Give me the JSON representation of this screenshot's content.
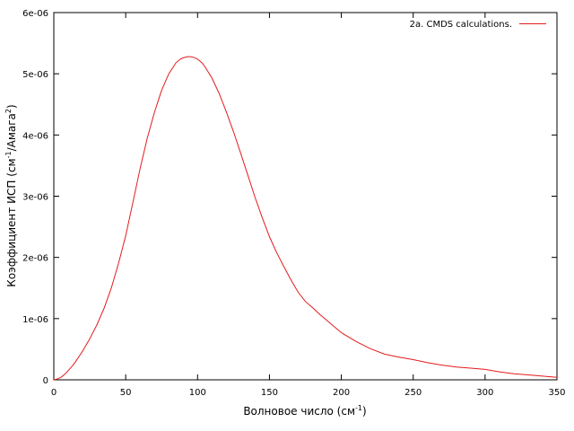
{
  "chart_data": {
    "type": "line",
    "title": "",
    "xlabel": {
      "text": "Волновое число (см",
      "sup": "-1",
      "tail": ")"
    },
    "ylabel": {
      "pre": "Коэффициент ИСП (см",
      "sup1": "-1",
      "mid": "/Амага",
      "sup2": "2",
      "tail": ")"
    },
    "xlim": [
      0,
      350
    ],
    "ylim": [
      0,
      6e-06
    ],
    "xticks": [
      {
        "value": 0,
        "label": "0"
      },
      {
        "value": 50,
        "label": "50"
      },
      {
        "value": 100,
        "label": "100"
      },
      {
        "value": 150,
        "label": "150"
      },
      {
        "value": 200,
        "label": "200"
      },
      {
        "value": 250,
        "label": "250"
      },
      {
        "value": 300,
        "label": "300"
      },
      {
        "value": 350,
        "label": "350"
      }
    ],
    "yticks": [
      {
        "value": 0,
        "label": "0"
      },
      {
        "value": 1e-06,
        "label": "1e-06"
      },
      {
        "value": 2e-06,
        "label": "2e-06"
      },
      {
        "value": 3e-06,
        "label": "3e-06"
      },
      {
        "value": 4e-06,
        "label": "4e-06"
      },
      {
        "value": 5e-06,
        "label": "5e-06"
      },
      {
        "value": 6e-06,
        "label": "6e-06"
      }
    ],
    "grid": false,
    "legend_position": "top-right",
    "series": [
      {
        "name": "2a. CMDS calculations.",
        "color": "#e41a1c",
        "x": [
          0,
          2,
          5,
          8,
          10,
          13,
          15,
          20,
          25,
          30,
          35,
          40,
          45,
          50,
          55,
          60,
          65,
          70,
          75,
          80,
          85,
          88,
          90,
          93,
          95,
          97,
          100,
          103,
          105,
          110,
          115,
          120,
          125,
          130,
          135,
          140,
          145,
          150,
          155,
          160,
          165,
          170,
          175,
          180,
          185,
          190,
          195,
          200,
          210,
          220,
          230,
          240,
          250,
          260,
          270,
          280,
          290,
          300,
          310,
          320,
          330,
          340,
          350
        ],
        "y": [
          0,
          1e-08,
          4e-08,
          1e-07,
          1.5e-07,
          2.3e-07,
          2.9e-07,
          4.7e-07,
          6.7e-07,
          9e-07,
          1.17e-06,
          1.5e-06,
          1.9e-06,
          2.35e-06,
          2.9e-06,
          3.45e-06,
          3.95e-06,
          4.37e-06,
          4.73e-06,
          5e-06,
          5.18e-06,
          5.24e-06,
          5.26e-06,
          5.28e-06,
          5.28e-06,
          5.27e-06,
          5.24e-06,
          5.18e-06,
          5.12e-06,
          4.93e-06,
          4.68e-06,
          4.38e-06,
          4.05e-06,
          3.7e-06,
          3.34e-06,
          2.98e-06,
          2.65e-06,
          2.34e-06,
          2.08e-06,
          1.85e-06,
          1.63e-06,
          1.43e-06,
          1.28e-06,
          1.18e-06,
          1.07e-06,
          9.7e-07,
          8.7e-07,
          7.7e-07,
          6.3e-07,
          5.1e-07,
          4.2e-07,
          3.7e-07,
          3.3e-07,
          2.8e-07,
          2.4e-07,
          2.1e-07,
          1.9e-07,
          1.7e-07,
          1.3e-07,
          1e-07,
          8e-08,
          6e-08,
          4e-08
        ]
      }
    ]
  }
}
